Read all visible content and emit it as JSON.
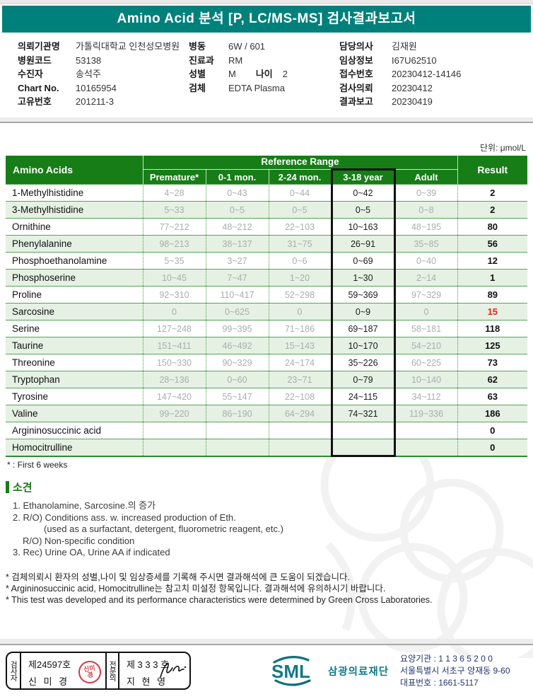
{
  "header": {
    "title": "Amino Acid 분석 [P, LC/MS-MS] 검사결과보고서"
  },
  "patient": {
    "col1": [
      {
        "label": "의뢰기관명",
        "value": "가톨릭대학교 인천성모병원"
      },
      {
        "label": "병원코드",
        "value": "53138"
      },
      {
        "label": "수진자",
        "value": "송석주"
      },
      {
        "label": "Chart No.",
        "value": "10165954"
      },
      {
        "label": "고유번호",
        "value": "201211-3"
      }
    ],
    "col2": [
      {
        "label": "병동",
        "value": "6W / 601"
      },
      {
        "label": "진료과",
        "value": "RM"
      },
      {
        "label": "성별",
        "value": "M",
        "label2": "나이",
        "value2": "2"
      },
      {
        "label": "검체",
        "value": "EDTA Plasma"
      }
    ],
    "col3": [
      {
        "label": "담당의사",
        "value": "김재원"
      },
      {
        "label": "임상정보",
        "value": "I67U62510"
      },
      {
        "label": "접수번호",
        "value": "20230412-14146"
      },
      {
        "label": "검사의뢰",
        "value": "20230412"
      },
      {
        "label": "결과보고",
        "value": "20230419"
      }
    ]
  },
  "unit_label": "단위: μmol/L",
  "table": {
    "col_amino": "Amino Acids",
    "col_ref": "Reference Range",
    "col_result": "Result",
    "sub_headers": [
      "Premature*",
      "0-1 mon.",
      "2-24 mon.",
      "3-18 year",
      "Adult"
    ],
    "rows": [
      {
        "name": "1-Methylhistidine",
        "ranges": [
          "4~28",
          "0~43",
          "0~44",
          "0~42",
          "0~39"
        ],
        "result": "2",
        "alert": false
      },
      {
        "name": "3-Methylhistidine",
        "ranges": [
          "5~33",
          "0~5",
          "0~5",
          "0~5",
          "0~8"
        ],
        "result": "2",
        "alert": false
      },
      {
        "name": "Ornithine",
        "ranges": [
          "77~212",
          "48~212",
          "22~103",
          "10~163",
          "48~195"
        ],
        "result": "80",
        "alert": false
      },
      {
        "name": "Phenylalanine",
        "ranges": [
          "98~213",
          "38~137",
          "31~75",
          "26~91",
          "35~85"
        ],
        "result": "56",
        "alert": false
      },
      {
        "name": "Phosphoethanolamine",
        "ranges": [
          "5~35",
          "3~27",
          "0~6",
          "0~69",
          "0~40"
        ],
        "result": "12",
        "alert": false
      },
      {
        "name": "Phosphoserine",
        "ranges": [
          "10~45",
          "7~47",
          "1~20",
          "1~30",
          "2~14"
        ],
        "result": "1",
        "alert": false
      },
      {
        "name": "Proline",
        "ranges": [
          "92~310",
          "110~417",
          "52~298",
          "59~369",
          "97~329"
        ],
        "result": "89",
        "alert": false
      },
      {
        "name": "Sarcosine",
        "ranges": [
          "0",
          "0~625",
          "0",
          "0~9",
          "0"
        ],
        "result": "15",
        "alert": true
      },
      {
        "name": "Serine",
        "ranges": [
          "127~248",
          "99~395",
          "71~186",
          "69~187",
          "58~181"
        ],
        "result": "118",
        "alert": false
      },
      {
        "name": "Taurine",
        "ranges": [
          "151~411",
          "46~492",
          "15~143",
          "10~170",
          "54~210"
        ],
        "result": "125",
        "alert": false
      },
      {
        "name": "Threonine",
        "ranges": [
          "150~330",
          "90~329",
          "24~174",
          "35~226",
          "60~225"
        ],
        "result": "73",
        "alert": false
      },
      {
        "name": "Tryptophan",
        "ranges": [
          "28~136",
          "0~60",
          "23~71",
          "0~79",
          "10~140"
        ],
        "result": "62",
        "alert": false
      },
      {
        "name": "Tyrosine",
        "ranges": [
          "147~420",
          "55~147",
          "22~108",
          "24~115",
          "34~112"
        ],
        "result": "63",
        "alert": false
      },
      {
        "name": "Valine",
        "ranges": [
          "99~220",
          "86~190",
          "64~294",
          "74~321",
          "119~336"
        ],
        "result": "186",
        "alert": false
      },
      {
        "name": "Argininosuccinic acid",
        "ranges": [
          "",
          "",
          "",
          "",
          ""
        ],
        "result": "0",
        "alert": false
      },
      {
        "name": "Homocitrulline",
        "ranges": [
          "",
          "",
          "",
          "",
          ""
        ],
        "result": "0",
        "alert": false
      }
    ]
  },
  "footnote_star": "* : First 6 weeks",
  "findings": {
    "title": "소견",
    "lines": [
      {
        "text": "1. Ethanolamine, Sarcosine.의 증가",
        "indent": 0
      },
      {
        "text": "2. R/O) Conditions ass. w. increased production of Eth.",
        "indent": 0
      },
      {
        "text": "(used as a surfactant, detergent, fluorometric reagent, etc.)",
        "indent": 2
      },
      {
        "text": "R/O) Non-specific condition",
        "indent": 1
      },
      {
        "text": "3. Rec) Urine OA, Urine AA if indicated",
        "indent": 0
      }
    ]
  },
  "notes": [
    "* 검체의뢰시 환자의 성별,나이 및 임상증세를 기록해 주시면 결과해석에 큰 도움이 되겠습니다.",
    "* Argininosuccinic acid, Homocitrulline는 참고치 미설정 항목입니다. 결과해석에 유의하시기 바랍니다.",
    "* This test was developed and its performance characteristics were determined by Green Cross Laboratories."
  ],
  "footer": {
    "examiner_role": "검사자",
    "examiner_no": "제24597호",
    "examiner_name": "신 미 경",
    "specialist_role": "전문의",
    "specialist_no": "제 3 3 3 호",
    "specialist_name": "지 현 영",
    "logo_text": "SML",
    "org_name": "삼광의료재단",
    "info_lines": [
      "요양기관 : 1 1 3 6 5 2 0 0",
      "서울특별시 서초구 양재동 9-60",
      "대표번호 : 1661-5117"
    ]
  },
  "colors": {
    "banner_teal": "#00807b",
    "table_header_green": "#177d17",
    "row_alt_green": "#e5f1e3",
    "alert_red": "#e8231f",
    "logo_teal": "#10798a",
    "seal_red": "#d33a44"
  }
}
